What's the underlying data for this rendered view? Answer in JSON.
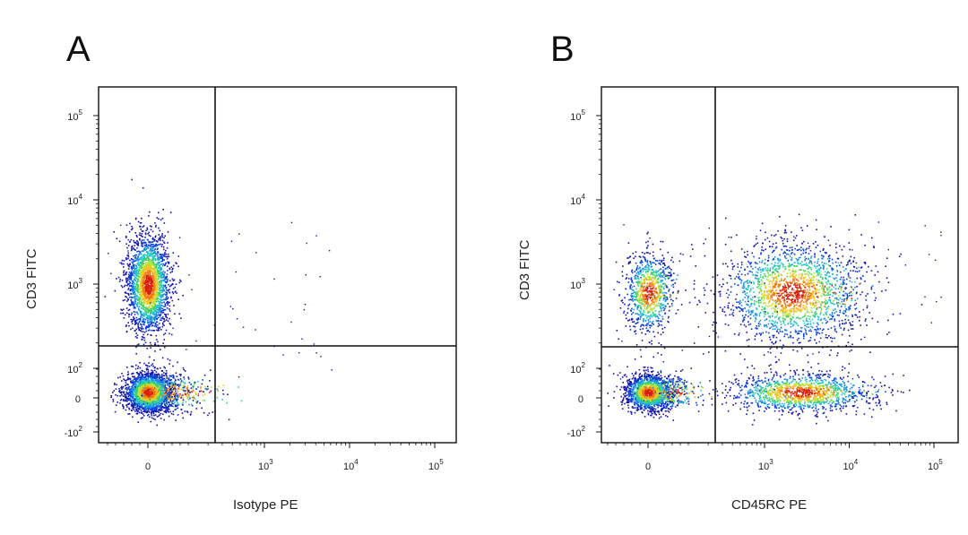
{
  "chart_data": [
    {
      "panel": "A",
      "type": "scatter",
      "xlabel": "Isotype PE",
      "ylabel": "CD3 FITC",
      "scale": "biexponential",
      "x_ticks": [
        {
          "value": 0,
          "base": "0",
          "exp": ""
        },
        {
          "value": 1000,
          "base": "10",
          "exp": "3"
        },
        {
          "value": 10000,
          "base": "10",
          "exp": "4"
        },
        {
          "value": 100000,
          "base": "10",
          "exp": "5"
        }
      ],
      "y_ticks": [
        {
          "value": -100,
          "base": "-10",
          "exp": "2"
        },
        {
          "value": 0,
          "base": "0",
          "exp": ""
        },
        {
          "value": 100,
          "base": "10",
          "exp": "2"
        },
        {
          "value": 1000,
          "base": "10",
          "exp": "3"
        },
        {
          "value": 10000,
          "base": "10",
          "exp": "4"
        },
        {
          "value": 100000,
          "base": "10",
          "exp": "5"
        }
      ],
      "x_range": [
        -200,
        200000
      ],
      "y_range": [
        -200,
        250000
      ],
      "quadrant_gate": {
        "x": 300,
        "y": 250
      },
      "populations": [
        {
          "name_hint": "CD3+ / PE-",
          "x": 0,
          "y": 1000,
          "count": 2300
        },
        {
          "name_hint": "CD3- / PE-",
          "x": 0,
          "y": 20,
          "count": 2600
        }
      ]
    },
    {
      "panel": "B",
      "type": "scatter",
      "xlabel": "CD45RC PE",
      "ylabel": "CD3 FITC",
      "scale": "biexponential",
      "x_ticks": [
        {
          "value": 0,
          "base": "0",
          "exp": ""
        },
        {
          "value": 1000,
          "base": "10",
          "exp": "3"
        },
        {
          "value": 10000,
          "base": "10",
          "exp": "4"
        },
        {
          "value": 100000,
          "base": "10",
          "exp": "5"
        }
      ],
      "y_ticks": [
        {
          "value": -100,
          "base": "-10",
          "exp": "2"
        },
        {
          "value": 0,
          "base": "0",
          "exp": ""
        },
        {
          "value": 100,
          "base": "10",
          "exp": "2"
        },
        {
          "value": 1000,
          "base": "10",
          "exp": "3"
        },
        {
          "value": 10000,
          "base": "10",
          "exp": "4"
        },
        {
          "value": 100000,
          "base": "10",
          "exp": "5"
        }
      ],
      "x_range": [
        -200,
        200000
      ],
      "y_range": [
        -200,
        250000
      ],
      "quadrant_gate": {
        "x": 300,
        "y": 250
      },
      "populations": [
        {
          "name_hint": "CD3+ / CD45RC-",
          "x": 0,
          "y": 800,
          "count": 900
        },
        {
          "name_hint": "CD3+ / CD45RC+",
          "x": 2000,
          "y": 800,
          "count": 2000
        },
        {
          "name_hint": "CD3- / CD45RC-",
          "x": 0,
          "y": 20,
          "count": 1900
        },
        {
          "name_hint": "CD3- / CD45RC+",
          "x": 2500,
          "y": 20,
          "count": 1300
        }
      ]
    }
  ],
  "density_colors": [
    "#1515a8",
    "#0a3dd6",
    "#1f8fe0",
    "#23c7c7",
    "#3fd06a",
    "#b8e03a",
    "#f2c21e",
    "#f07a10",
    "#d81e10"
  ]
}
